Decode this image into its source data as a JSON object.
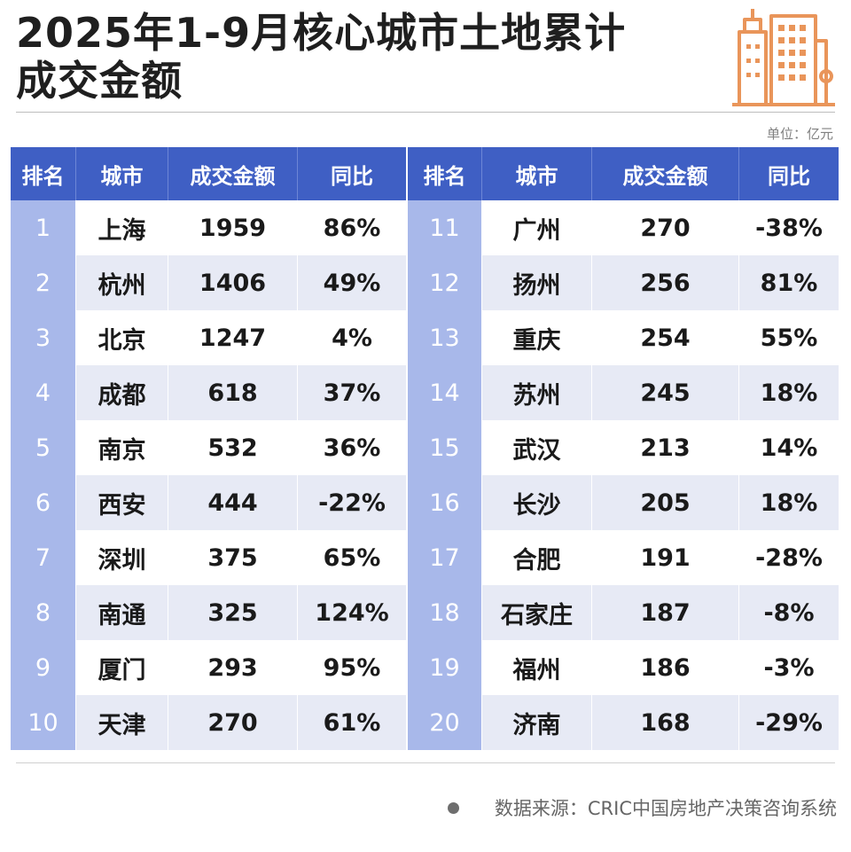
{
  "title": {
    "line1": "2025年1-9月核心城市土地累计",
    "line2": "成交金额"
  },
  "unit": "单位：亿元",
  "colors": {
    "header_bg": "#3f5fc4",
    "rank_cell_bg": "#a8b8ea",
    "stripe_bg": "#e7eaf5",
    "logo": "#e9955a"
  },
  "logo_icon": "city-buildings-icon",
  "source": "数据来源：CRIC中国房地产决策咨询系统",
  "chart_data": {
    "type": "table",
    "columns": [
      "排名",
      "城市",
      "成交金额",
      "同比"
    ],
    "left_columns": [
      "排名",
      "城市",
      "成交金额",
      "同比"
    ],
    "right_columns": [
      "排名",
      "城市",
      "成交金额",
      "同比"
    ],
    "left_rows": [
      [
        "1",
        "上海",
        "1959",
        "86%"
      ],
      [
        "2",
        "杭州",
        "1406",
        "49%"
      ],
      [
        "3",
        "北京",
        "1247",
        "4%"
      ],
      [
        "4",
        "成都",
        "618",
        "37%"
      ],
      [
        "5",
        "南京",
        "532",
        "36%"
      ],
      [
        "6",
        "西安",
        "444",
        "-22%"
      ],
      [
        "7",
        "深圳",
        "375",
        "65%"
      ],
      [
        "8",
        "南通",
        "325",
        "124%"
      ],
      [
        "9",
        "厦门",
        "293",
        "95%"
      ],
      [
        "10",
        "天津",
        "270",
        "61%"
      ]
    ],
    "right_rows": [
      [
        "11",
        "广州",
        "270",
        "-38%"
      ],
      [
        "12",
        "扬州",
        "256",
        "81%"
      ],
      [
        "13",
        "重庆",
        "254",
        "55%"
      ],
      [
        "14",
        "苏州",
        "245",
        "18%"
      ],
      [
        "15",
        "武汉",
        "213",
        "14%"
      ],
      [
        "16",
        "长沙",
        "205",
        "18%"
      ],
      [
        "17",
        "合肥",
        "191",
        "-28%"
      ],
      [
        "18",
        "石家庄",
        "187",
        "-8%"
      ],
      [
        "19",
        "福州",
        "186",
        "-3%"
      ],
      [
        "20",
        "济南",
        "168",
        "-29%"
      ]
    ]
  }
}
